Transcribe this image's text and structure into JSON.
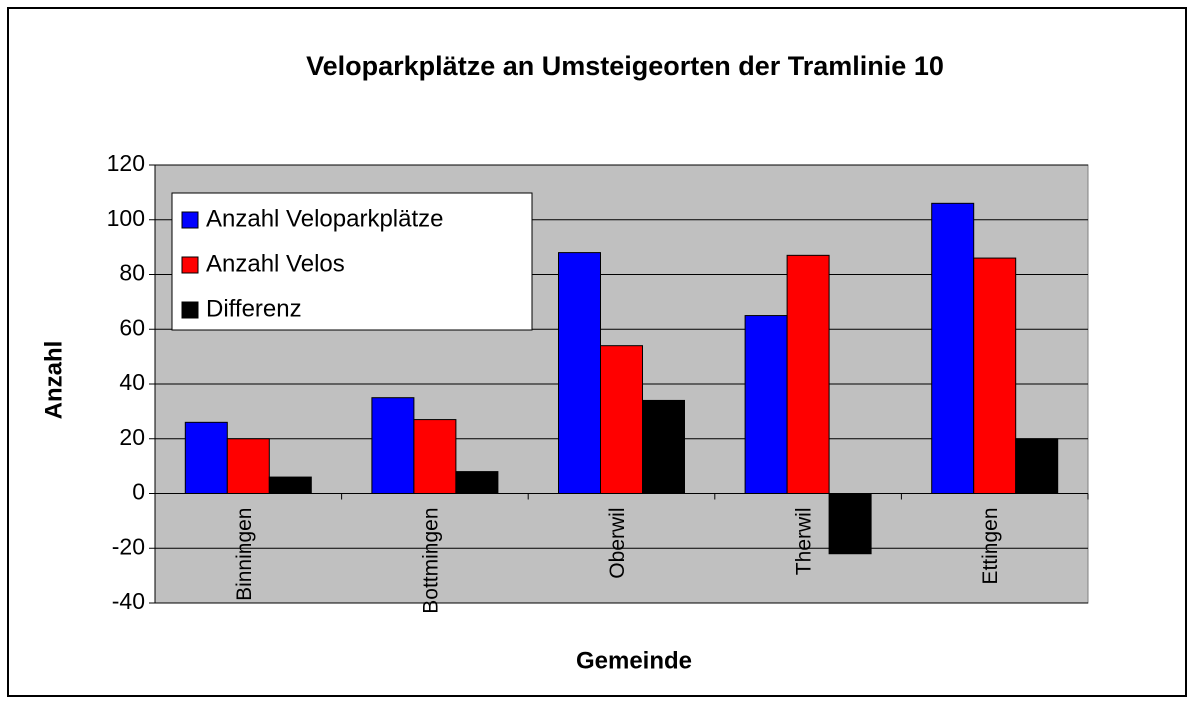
{
  "chart_data": {
    "type": "bar",
    "title": "Veloparkplätze an Umsteigeorten der Tramlinie 10",
    "x_label": "Gemeinde",
    "y_label": "Anzahl",
    "categories": [
      "Binningen",
      "Bottmingen",
      "Oberwil",
      "Therwil",
      "Ettingen"
    ],
    "series": [
      {
        "name": "Anzahl Veloparkplätze",
        "color": "#0000ff",
        "values": [
          26,
          35,
          88,
          65,
          106
        ]
      },
      {
        "name": "Anzahl Velos",
        "color": "#ff0000",
        "values": [
          20,
          27,
          54,
          87,
          86
        ]
      },
      {
        "name": "Differenz",
        "color": "#000000",
        "values": [
          6,
          8,
          34,
          -22,
          20
        ]
      }
    ],
    "ylim": [
      -40,
      120
    ],
    "yticks": [
      -40,
      -20,
      0,
      20,
      40,
      60,
      80,
      100,
      120
    ],
    "grid": true,
    "legend": "upper left"
  }
}
